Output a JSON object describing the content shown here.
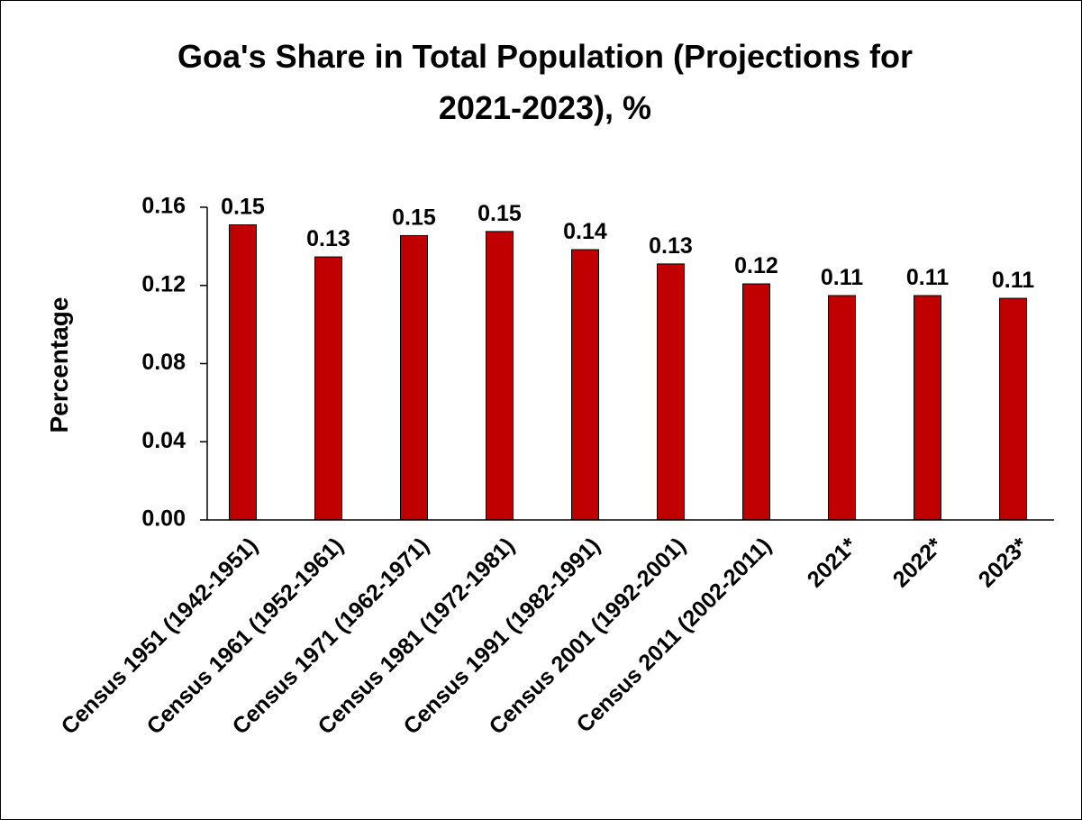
{
  "chart_data": {
    "type": "bar",
    "title": "Goa's Share in Total Population (Projections for 2021-2023), %",
    "y_label": "Percentage",
    "categories": [
      "Census 1951 (1942-1951)",
      "Census 1961 (1952-1961)",
      "Census 1971 (1962-1971)",
      "Census 1981 (1972-1981)",
      "Census 1991 (1982-1991)",
      "Census 2001 (1992-2001)",
      "Census 2011 (2002-2011)",
      "2021*",
      "2022*",
      "2023*"
    ],
    "values": [
      0.151,
      0.1346,
      0.1455,
      0.1476,
      0.1383,
      0.131,
      0.1208,
      0.1148,
      0.1148,
      0.1134
    ],
    "value_labels": [
      "0.15",
      "0.13",
      "0.15",
      "0.15",
      "0.14",
      "0.13",
      "0.12",
      "0.11",
      "0.11",
      "0.11"
    ],
    "color": "#c00000",
    "ylim": [
      0,
      0.16
    ],
    "yticks": [
      {
        "value": 0,
        "label": "0.00"
      },
      0.04,
      0.08,
      0.12,
      0.16
    ],
    "grid": false
  }
}
